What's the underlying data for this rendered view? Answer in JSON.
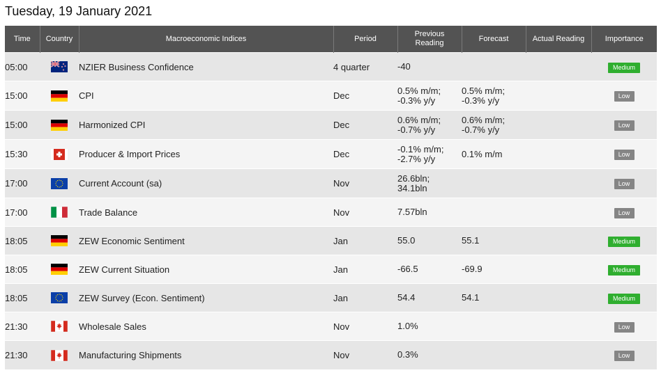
{
  "date_heading": "Tuesday, 19 January 2021",
  "columns": {
    "time": "Time",
    "country": "Country",
    "indicator": "Macroeconomic Indices",
    "period": "Period",
    "previous_line1": "Previous",
    "previous_line2": "Reading",
    "forecast": "Forecast",
    "actual": "Actual Reading",
    "importance": "Importance"
  },
  "rows": [
    {
      "time": "05:00",
      "flag": "new-zealand-flag-icon",
      "indicator": "NZIER Business Confidence",
      "period": "4 quarter",
      "prev1": "-40",
      "prev2": "",
      "fore1": "",
      "fore2": "",
      "actual": "",
      "importance": "Medium"
    },
    {
      "time": "15:00",
      "flag": "germany-flag-icon",
      "indicator": "CPI",
      "period": "Dec",
      "prev1": "0.5% m/m;",
      "prev2": "-0.3% y/y",
      "fore1": "0.5% m/m;",
      "fore2": "-0.3% y/y",
      "actual": "",
      "importance": "Low"
    },
    {
      "time": "15:00",
      "flag": "germany-flag-icon",
      "indicator": "Harmonized CPI",
      "period": "Dec",
      "prev1": "0.6% m/m;",
      "prev2": "-0.7% y/y",
      "fore1": "0.6% m/m;",
      "fore2": "-0.7% y/y",
      "actual": "",
      "importance": "Low"
    },
    {
      "time": "15:30",
      "flag": "switzerland-flag-icon",
      "indicator": "Producer & Import Prices",
      "period": "Dec",
      "prev1": "-0.1% m/m;",
      "prev2": "-2.7% y/y",
      "fore1": "0.1% m/m",
      "fore2": "",
      "actual": "",
      "importance": "Low"
    },
    {
      "time": "17:00",
      "flag": "eu-flag-icon",
      "indicator": "Current Account (sa)",
      "period": "Nov",
      "prev1": "26.6bln;",
      "prev2": "34.1bln",
      "fore1": "",
      "fore2": "",
      "actual": "",
      "importance": "Low"
    },
    {
      "time": "17:00",
      "flag": "italy-flag-icon",
      "indicator": "Trade Balance",
      "period": "Nov",
      "prev1": "7.57bln",
      "prev2": "",
      "fore1": "",
      "fore2": "",
      "actual": "",
      "importance": "Low"
    },
    {
      "time": "18:05",
      "flag": "germany-flag-icon",
      "indicator": "ZEW Economic Sentiment",
      "period": "Jan",
      "prev1": "55.0",
      "prev2": "",
      "fore1": "55.1",
      "fore2": "",
      "actual": "",
      "importance": "Medium"
    },
    {
      "time": "18:05",
      "flag": "germany-flag-icon",
      "indicator": "ZEW Current Situation",
      "period": "Jan",
      "prev1": "-66.5",
      "prev2": "",
      "fore1": "-69.9",
      "fore2": "",
      "actual": "",
      "importance": "Medium"
    },
    {
      "time": "18:05",
      "flag": "eu-flag-icon",
      "indicator": "ZEW Survey (Econ. Sentiment)",
      "period": "Jan",
      "prev1": "54.4",
      "prev2": "",
      "fore1": "54.1",
      "fore2": "",
      "actual": "",
      "importance": "Medium"
    },
    {
      "time": "21:30",
      "flag": "canada-flag-icon",
      "indicator": "Wholesale Sales",
      "period": "Nov",
      "prev1": "1.0%",
      "prev2": "",
      "fore1": "",
      "fore2": "",
      "actual": "",
      "importance": "Low"
    },
    {
      "time": "21:30",
      "flag": "canada-flag-icon",
      "indicator": "Manufacturing Shipments",
      "period": "Nov",
      "prev1": "0.3%",
      "prev2": "",
      "fore1": "",
      "fore2": "",
      "actual": "",
      "importance": "Low"
    }
  ],
  "colors": {
    "header_bg": "#535353",
    "medium_badge": "#2fae2f",
    "low_badge": "#858585",
    "row_odd": "#e6e6e6",
    "row_even": "#f4f4f4"
  }
}
